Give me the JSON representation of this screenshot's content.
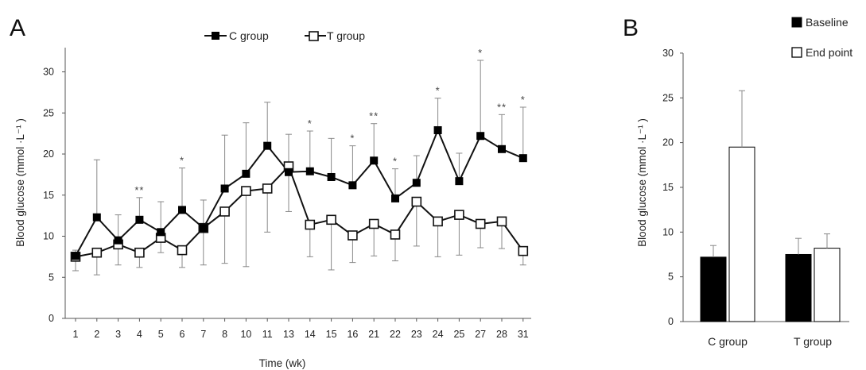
{
  "chart_data": [
    {
      "panel": "A",
      "type": "line",
      "xlabel": "Time (wk)",
      "ylabel": "Blood glucose (mmol ·L⁻¹ )",
      "ylim": [
        0,
        33
      ],
      "yticks": [
        0,
        5,
        10,
        15,
        20,
        25,
        30
      ],
      "categories": [
        "1",
        "2",
        "3",
        "4",
        "5",
        "6",
        "7",
        "8",
        "10",
        "11",
        "13",
        "14",
        "15",
        "16",
        "21",
        "22",
        "23",
        "24",
        "25",
        "27",
        "28",
        "31"
      ],
      "grid": false,
      "legend_position": "top",
      "series": [
        {
          "name": "C group",
          "marker": "filled-square",
          "values": [
            7.6,
            12.3,
            9.5,
            12.0,
            10.5,
            13.2,
            11.0,
            15.8,
            17.6,
            21.0,
            17.8,
            17.9,
            17.2,
            16.2,
            19.2,
            14.6,
            16.5,
            22.9,
            16.7,
            22.2,
            20.6,
            19.5
          ],
          "error_upper": [
            8.3,
            19.3,
            12.6,
            14.7,
            14.2,
            18.3,
            14.4,
            22.3,
            23.8,
            26.3,
            22.4,
            22.8,
            21.9,
            21.0,
            23.7,
            18.2,
            19.8,
            26.8,
            20.1,
            31.4,
            24.8,
            25.7
          ]
        },
        {
          "name": "T group",
          "marker": "open-square",
          "values": [
            7.5,
            8.0,
            9.0,
            8.0,
            9.8,
            8.3,
            11.0,
            13.0,
            15.5,
            15.8,
            18.5,
            11.4,
            12.0,
            10.1,
            11.5,
            10.2,
            14.2,
            11.8,
            12.6,
            11.5,
            11.8,
            8.2
          ],
          "error_lower": [
            5.8,
            5.3,
            6.5,
            6.2,
            8.0,
            6.2,
            6.5,
            6.7,
            6.3,
            10.5,
            13.0,
            7.5,
            5.9,
            6.8,
            7.6,
            7.0,
            8.8,
            7.5,
            7.7,
            8.6,
            8.5,
            6.5
          ]
        }
      ],
      "annotations": [
        "",
        "",
        "",
        "**",
        "",
        "*",
        "",
        "",
        "",
        "",
        "",
        "*",
        "",
        "*",
        "**",
        "*",
        "",
        "*",
        "",
        "*",
        "**",
        "*"
      ]
    },
    {
      "panel": "B",
      "type": "bar",
      "ylabel": "Blood glucose (mmol ·L⁻¹ )",
      "ylim": [
        0,
        30
      ],
      "yticks": [
        0,
        5,
        10,
        15,
        20,
        25,
        30
      ],
      "categories": [
        "C group",
        "T group"
      ],
      "grid": false,
      "legend_position": "top-right",
      "series": [
        {
          "name": "Baseline",
          "fill": "#000000",
          "values": [
            7.2,
            7.5
          ],
          "error": [
            1.3,
            1.8
          ]
        },
        {
          "name": "End point",
          "fill": "#ffffff",
          "values": [
            19.5,
            8.2
          ],
          "error": [
            6.3,
            1.6
          ]
        }
      ]
    }
  ]
}
